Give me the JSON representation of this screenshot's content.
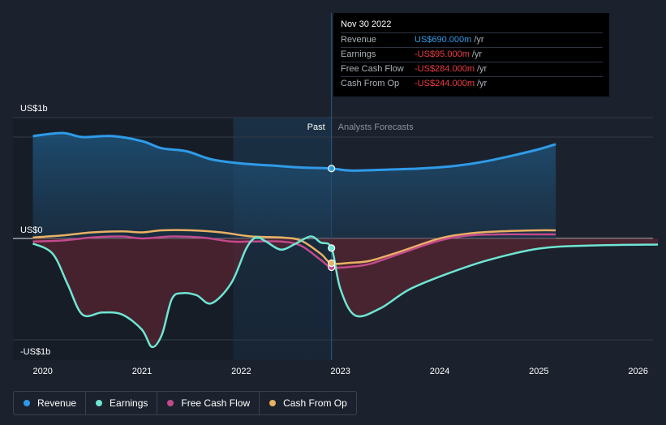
{
  "tooltip": {
    "date": "Nov 30 2022",
    "rows": [
      {
        "label": "Revenue",
        "value": "US$690.000m",
        "unit": "/yr",
        "color": "#2f9be8"
      },
      {
        "label": "Earnings",
        "value": "-US$95.000m",
        "unit": "/yr",
        "color": "#f03a43"
      },
      {
        "label": "Free Cash Flow",
        "value": "-US$284.000m",
        "unit": "/yr",
        "color": "#f03a43"
      },
      {
        "label": "Cash From Op",
        "value": "-US$244.000m",
        "unit": "/yr",
        "color": "#f03a43"
      }
    ]
  },
  "periods": {
    "past": "Past",
    "forecast": "Analysts Forecasts"
  },
  "legend": [
    {
      "label": "Revenue",
      "color": "#2f9be8"
    },
    {
      "label": "Earnings",
      "color": "#6ee6d3"
    },
    {
      "label": "Free Cash Flow",
      "color": "#c24a8c"
    },
    {
      "label": "Cash From Op",
      "color": "#e9b163"
    }
  ],
  "chart_data": {
    "type": "line",
    "y_tick_labels": [
      "US$1b",
      "US$0",
      "-US$1b"
    ],
    "y_tick_values": [
      1000,
      0,
      -1000
    ],
    "ylim": [
      -1200,
      1200
    ],
    "xlim": [
      2019.7,
      2026.15
    ],
    "x_ticks": [
      2020,
      2021,
      2022,
      2023,
      2024,
      2025,
      2026
    ],
    "past_start": 2021.92,
    "today": 2022.91,
    "series": [
      {
        "name": "Revenue",
        "color": "#2f9be8",
        "x": [
          2019.9,
          2020.2,
          2020.4,
          2020.7,
          2021.0,
          2021.2,
          2021.45,
          2021.7,
          2022.0,
          2022.3,
          2022.6,
          2022.91,
          2023.1,
          2023.5,
          2023.8,
          2024.1,
          2024.4,
          2024.7,
          2025.0,
          2025.17
        ],
        "y": [
          1010,
          1040,
          1000,
          1010,
          960,
          890,
          860,
          780,
          740,
          720,
          700,
          690,
          670,
          680,
          690,
          710,
          750,
          810,
          880,
          930
        ]
      },
      {
        "name": "Earnings",
        "color": "#6ee6d3",
        "x": [
          2019.9,
          2020.1,
          2020.25,
          2020.4,
          2020.6,
          2020.8,
          2021.0,
          2021.1,
          2021.2,
          2021.3,
          2021.4,
          2021.55,
          2021.7,
          2021.9,
          2022.05,
          2022.15,
          2022.25,
          2022.4,
          2022.55,
          2022.7,
          2022.8,
          2022.91,
          2023.0,
          2023.15,
          2023.4,
          2023.7,
          2024.1,
          2024.5,
          2025.0,
          2025.5,
          2026.2
        ],
        "y": [
          -50,
          -150,
          -450,
          -750,
          -730,
          -750,
          -900,
          -1070,
          -950,
          -600,
          -540,
          -560,
          -640,
          -440,
          -100,
          10,
          -30,
          -110,
          -50,
          20,
          -40,
          -95,
          -500,
          -760,
          -690,
          -500,
          -340,
          -210,
          -100,
          -70,
          -60
        ]
      },
      {
        "name": "Free Cash Flow",
        "color": "#c24a8c",
        "x": [
          2019.9,
          2020.2,
          2020.5,
          2020.8,
          2021.0,
          2021.3,
          2021.6,
          2021.9,
          2022.1,
          2022.4,
          2022.6,
          2022.8,
          2022.91,
          2023.1,
          2023.3,
          2023.6,
          2024.0,
          2024.3,
          2024.6,
          2025.0,
          2025.17
        ],
        "y": [
          -30,
          -20,
          10,
          20,
          0,
          20,
          10,
          -30,
          -30,
          -30,
          -70,
          -210,
          -284,
          -280,
          -250,
          -150,
          -20,
          30,
          40,
          40,
          40
        ]
      },
      {
        "name": "Cash From Op",
        "color": "#e9b163",
        "x": [
          2019.9,
          2020.2,
          2020.5,
          2020.8,
          2021.0,
          2021.2,
          2021.5,
          2021.8,
          2022.1,
          2022.4,
          2022.6,
          2022.8,
          2022.91,
          2023.1,
          2023.3,
          2023.6,
          2024.0,
          2024.3,
          2024.6,
          2025.0,
          2025.17
        ],
        "y": [
          10,
          30,
          60,
          70,
          60,
          80,
          80,
          60,
          20,
          10,
          -20,
          -150,
          -244,
          -240,
          -220,
          -130,
          0,
          50,
          70,
          80,
          80
        ]
      }
    ]
  }
}
